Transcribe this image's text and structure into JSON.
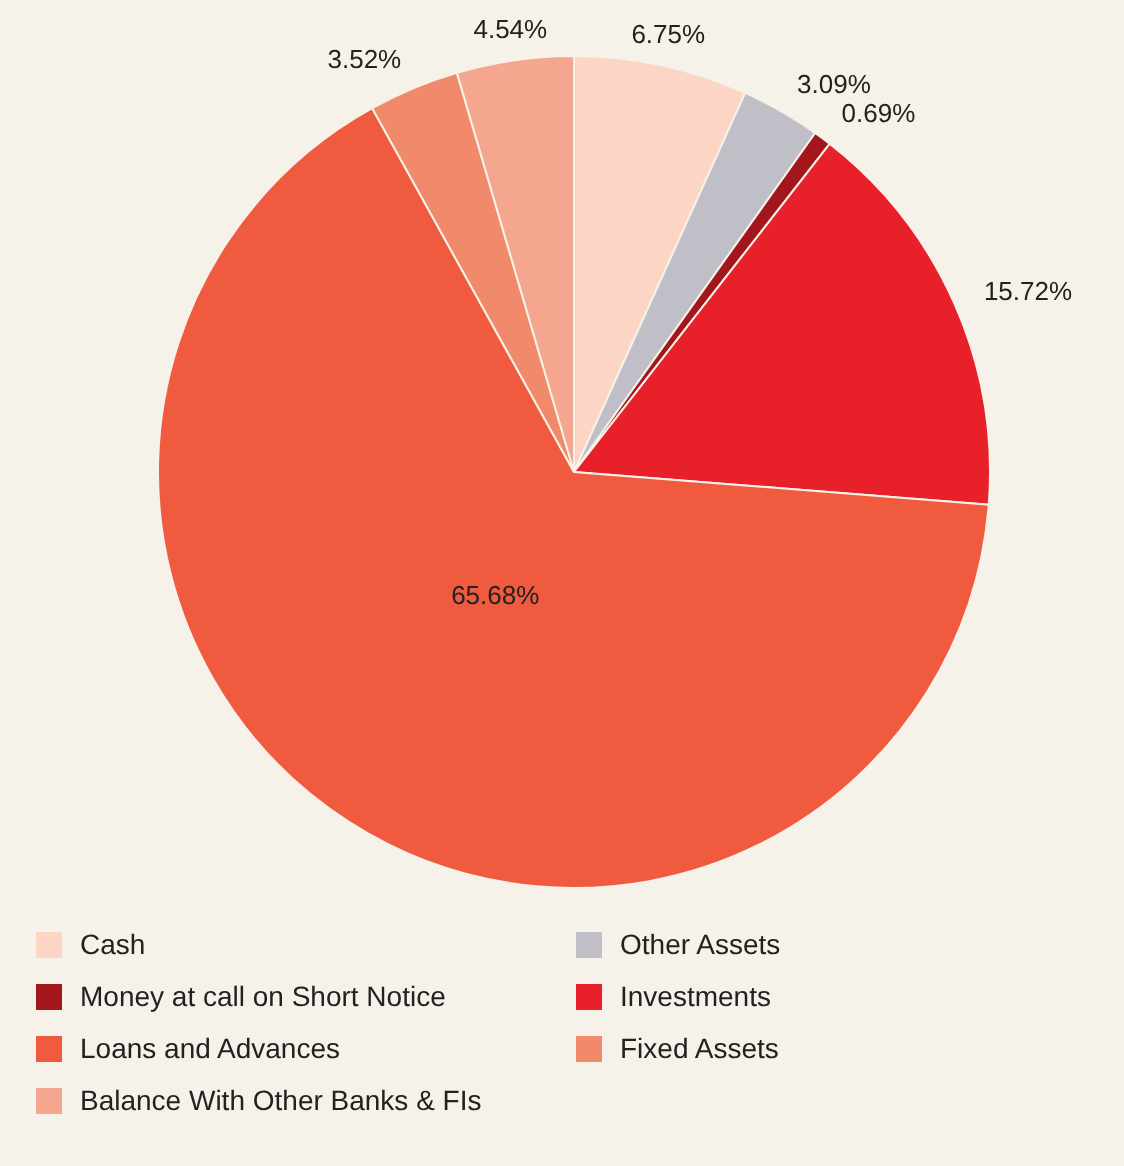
{
  "chart_data": {
    "type": "pie",
    "categories": [
      "Cash",
      "Other Assets",
      "Money at call on Short Notice",
      "Investments",
      "Loans and Advances",
      "Fixed Assets",
      "Balance With Other Banks & FIs"
    ],
    "values": [
      6.75,
      3.09,
      0.69,
      15.72,
      65.68,
      3.52,
      4.54
    ],
    "colors": [
      "#fcd5c5",
      "#c0bfc8",
      "#a3161c",
      "#e8202a",
      "#f05a3e",
      "#f08a6a",
      "#f4a78e"
    ],
    "value_labels": [
      "6.75%",
      "3.09%",
      "0.69%",
      "15.72%",
      "65.68%",
      "3.52%",
      "4.54%"
    ],
    "legend": "bottom"
  }
}
